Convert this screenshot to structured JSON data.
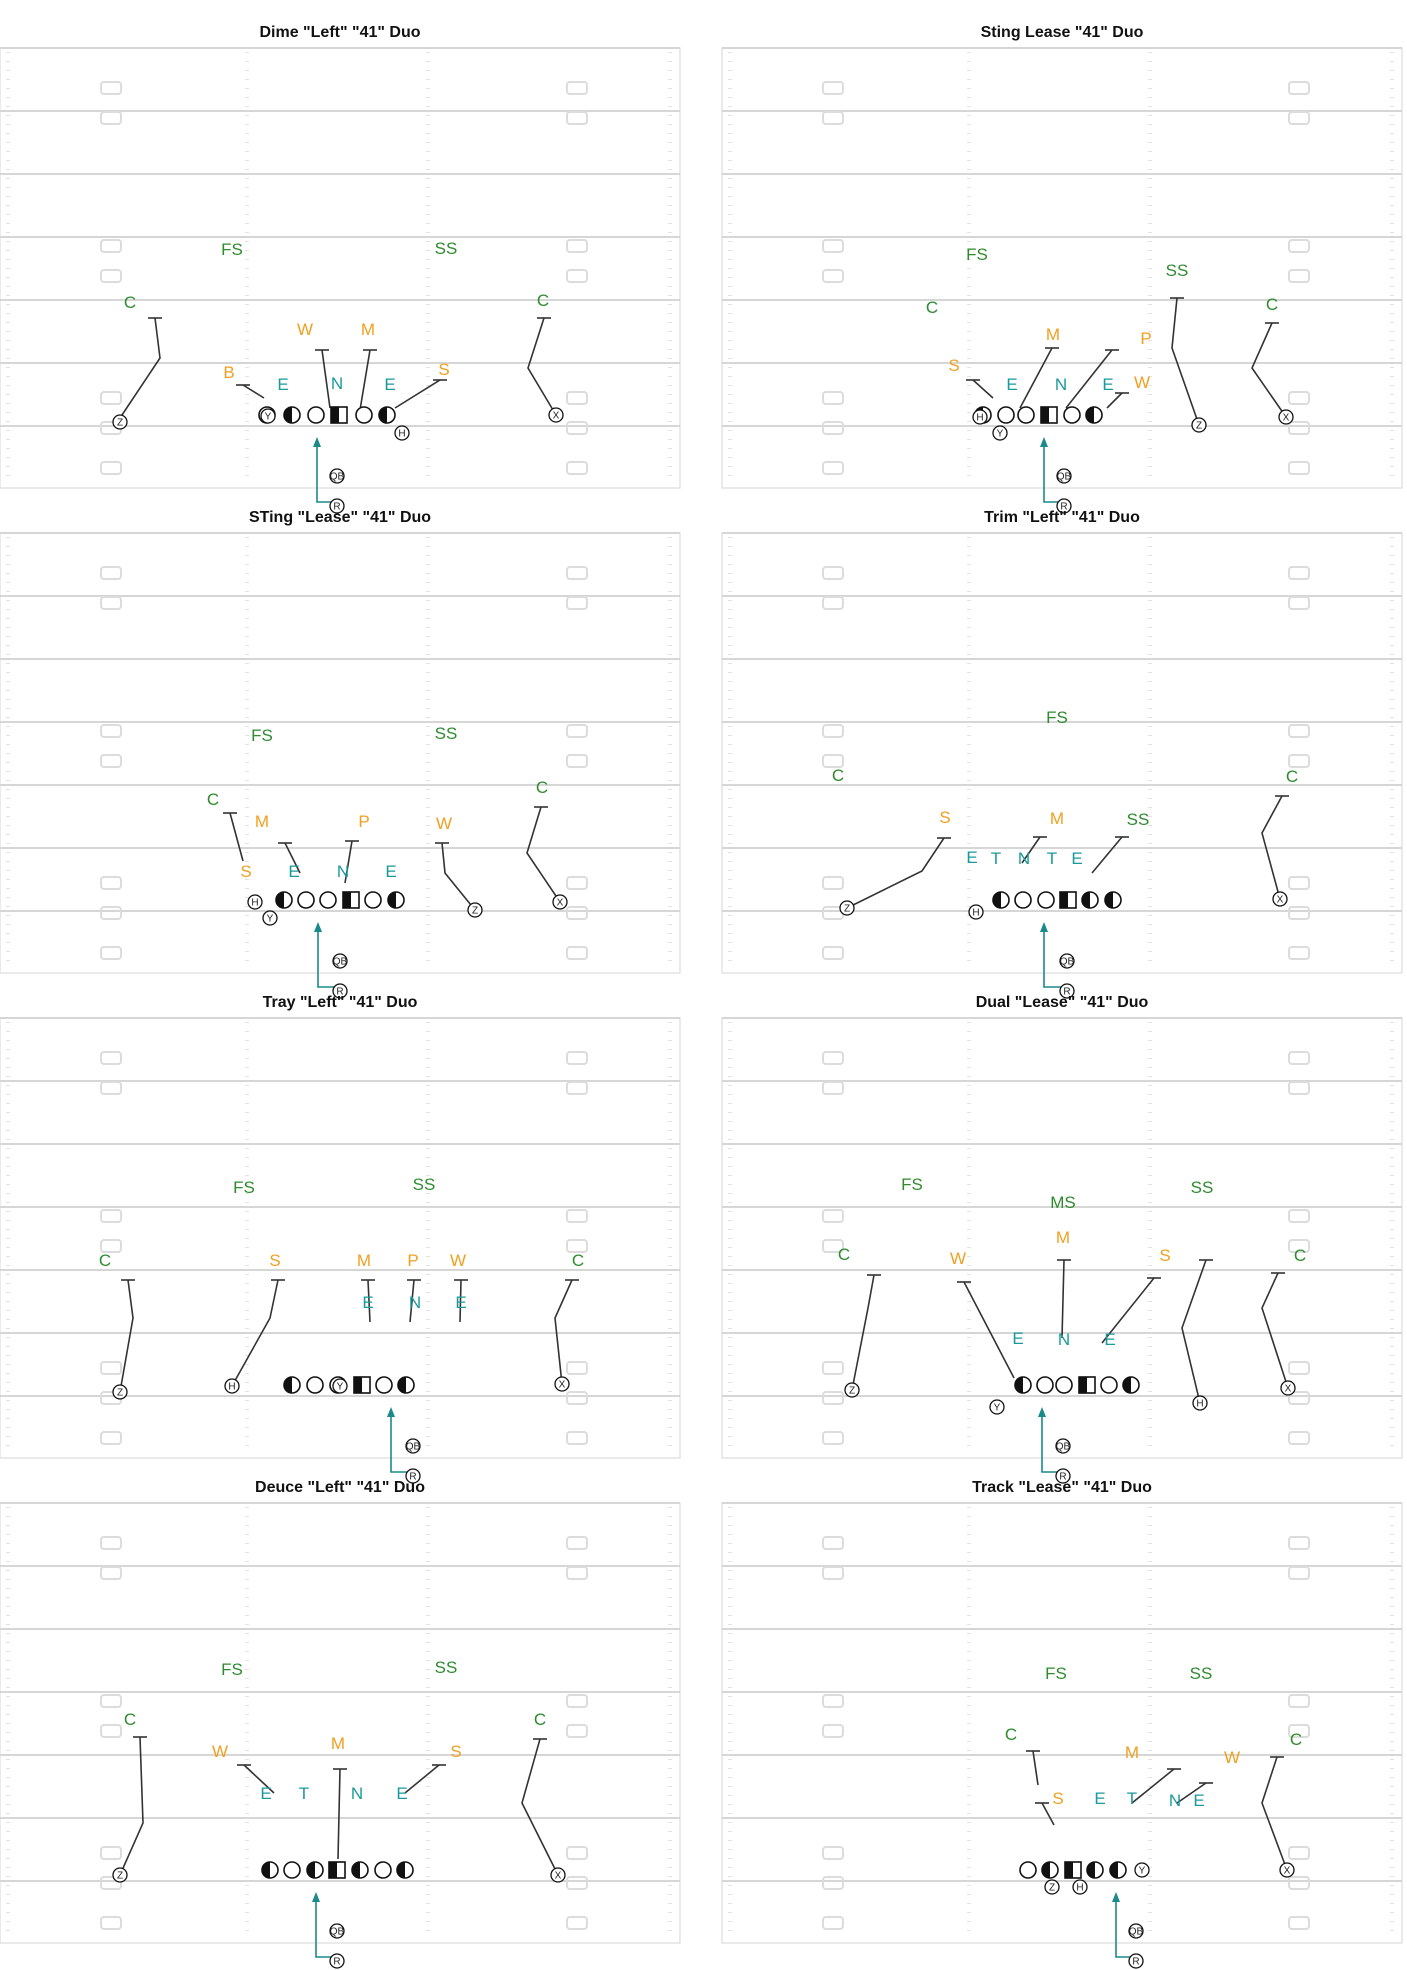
{
  "colors": {
    "secondary": "#2e8b2e",
    "linebacker": "#f0a020",
    "dline": "#1a9a9a",
    "route": "#333333",
    "run_arrow": "#1a8a8a",
    "field_line": "#d6d6d6"
  },
  "diagrams": [
    {
      "title": "Dime \"Left\" \"41\" Duo",
      "offense": {
        "line": [
          "O",
          "H",
          "O",
          "C",
          "O",
          "H"
        ],
        "receivers": [
          {
            "label": "Z"
          },
          {
            "label": "Y"
          },
          {
            "label": "H"
          },
          {
            "label": "X"
          }
        ],
        "backs": [
          {
            "label": "QB"
          },
          {
            "label": "R"
          }
        ]
      },
      "defense": [
        {
          "label": "FS",
          "group": "secondary"
        },
        {
          "label": "SS",
          "group": "secondary"
        },
        {
          "label": "C",
          "group": "secondary"
        },
        {
          "label": "C",
          "group": "secondary"
        },
        {
          "label": "W",
          "group": "linebacker"
        },
        {
          "label": "M",
          "group": "linebacker"
        },
        {
          "label": "B",
          "group": "linebacker"
        },
        {
          "label": "S",
          "group": "linebacker"
        },
        {
          "label": "E",
          "group": "dline"
        },
        {
          "label": "N",
          "group": "dline"
        },
        {
          "label": "E",
          "group": "dline"
        }
      ]
    },
    {
      "title": "Sting Lease \"41\" Duo",
      "offense": {
        "line": [
          "H",
          "O",
          "O",
          "C",
          "O",
          "H"
        ],
        "receivers": [
          {
            "label": "H"
          },
          {
            "label": "Y"
          },
          {
            "label": "Z"
          },
          {
            "label": "X"
          }
        ],
        "backs": [
          {
            "label": "QB"
          },
          {
            "label": "R"
          }
        ]
      },
      "defense": [
        {
          "label": "FS",
          "group": "secondary"
        },
        {
          "label": "SS",
          "group": "secondary"
        },
        {
          "label": "C",
          "group": "secondary"
        },
        {
          "label": "C",
          "group": "secondary"
        },
        {
          "label": "M",
          "group": "linebacker"
        },
        {
          "label": "P",
          "group": "linebacker"
        },
        {
          "label": "S",
          "group": "linebacker"
        },
        {
          "label": "W",
          "group": "linebacker"
        },
        {
          "label": "E",
          "group": "dline"
        },
        {
          "label": "N",
          "group": "dline"
        },
        {
          "label": "E",
          "group": "dline"
        }
      ]
    },
    {
      "title": "STing \"Lease\" \"41\" Duo",
      "offense": {
        "line": [
          "H",
          "O",
          "O",
          "C",
          "O",
          "H"
        ],
        "receivers": [
          {
            "label": "H"
          },
          {
            "label": "Y"
          },
          {
            "label": "Z"
          },
          {
            "label": "X"
          }
        ],
        "backs": [
          {
            "label": "QB"
          },
          {
            "label": "R"
          }
        ]
      },
      "defense": [
        {
          "label": "FS",
          "group": "secondary"
        },
        {
          "label": "SS",
          "group": "secondary"
        },
        {
          "label": "C",
          "group": "secondary"
        },
        {
          "label": "C",
          "group": "secondary"
        },
        {
          "label": "M",
          "group": "linebacker"
        },
        {
          "label": "P",
          "group": "linebacker"
        },
        {
          "label": "W",
          "group": "linebacker"
        },
        {
          "label": "S",
          "group": "linebacker"
        },
        {
          "label": "E",
          "group": "dline"
        },
        {
          "label": "N",
          "group": "dline"
        },
        {
          "label": "E",
          "group": "dline"
        }
      ]
    },
    {
      "title": "Trim \"Left\" \"41\" Duo",
      "offense": {
        "line": [
          "H",
          "O",
          "O",
          "C",
          "H",
          "H"
        ],
        "receivers": [
          {
            "label": "Z"
          },
          {
            "label": "H"
          },
          {
            "label": "X"
          }
        ],
        "backs": [
          {
            "label": "QB"
          },
          {
            "label": "R"
          }
        ]
      },
      "defense": [
        {
          "label": "FS",
          "group": "secondary"
        },
        {
          "label": "C",
          "group": "secondary"
        },
        {
          "label": "C",
          "group": "secondary"
        },
        {
          "label": "SS",
          "group": "secondary"
        },
        {
          "label": "S",
          "group": "linebacker"
        },
        {
          "label": "M",
          "group": "linebacker"
        },
        {
          "label": "E",
          "group": "dline"
        },
        {
          "label": "T",
          "group": "dline"
        },
        {
          "label": "N",
          "group": "dline"
        },
        {
          "label": "T",
          "group": "dline"
        },
        {
          "label": "E",
          "group": "dline"
        }
      ]
    },
    {
      "title": "Tray \"Left\" \"41\" Duo",
      "offense": {
        "line": [
          "H",
          "O",
          "O",
          "C",
          "O",
          "H"
        ],
        "receivers": [
          {
            "label": "Z"
          },
          {
            "label": "H"
          },
          {
            "label": "Y"
          },
          {
            "label": "X"
          }
        ],
        "backs": [
          {
            "label": "QB"
          },
          {
            "label": "R"
          }
        ]
      },
      "defense": [
        {
          "label": "FS",
          "group": "secondary"
        },
        {
          "label": "SS",
          "group": "secondary"
        },
        {
          "label": "C",
          "group": "secondary"
        },
        {
          "label": "C",
          "group": "secondary"
        },
        {
          "label": "S",
          "group": "linebacker"
        },
        {
          "label": "M",
          "group": "linebacker"
        },
        {
          "label": "P",
          "group": "linebacker"
        },
        {
          "label": "W",
          "group": "linebacker"
        },
        {
          "label": "E",
          "group": "dline"
        },
        {
          "label": "N",
          "group": "dline"
        },
        {
          "label": "E",
          "group": "dline"
        }
      ]
    },
    {
      "title": "Dual \"Lease\" \"41\" Duo",
      "offense": {
        "line": [
          "H",
          "O",
          "O",
          "C",
          "O",
          "H"
        ],
        "receivers": [
          {
            "label": "Z"
          },
          {
            "label": "Y"
          },
          {
            "label": "H"
          },
          {
            "label": "X"
          }
        ],
        "backs": [
          {
            "label": "QB"
          },
          {
            "label": "R"
          }
        ]
      },
      "defense": [
        {
          "label": "FS",
          "group": "secondary"
        },
        {
          "label": "MS",
          "group": "secondary"
        },
        {
          "label": "SS",
          "group": "secondary"
        },
        {
          "label": "C",
          "group": "secondary"
        },
        {
          "label": "C",
          "group": "secondary"
        },
        {
          "label": "W",
          "group": "linebacker"
        },
        {
          "label": "M",
          "group": "linebacker"
        },
        {
          "label": "S",
          "group": "linebacker"
        },
        {
          "label": "E",
          "group": "dline"
        },
        {
          "label": "N",
          "group": "dline"
        },
        {
          "label": "E",
          "group": "dline"
        }
      ]
    },
    {
      "title": "Deuce \"Left\" \"41\" Duo",
      "offense": {
        "line": [
          "H",
          "O",
          "H",
          "C",
          "H",
          "O",
          "H"
        ],
        "receivers": [
          {
            "label": "Z"
          },
          {
            "label": "X"
          }
        ],
        "backs": [
          {
            "label": "QB"
          },
          {
            "label": "R"
          }
        ]
      },
      "defense": [
        {
          "label": "FS",
          "group": "secondary"
        },
        {
          "label": "SS",
          "group": "secondary"
        },
        {
          "label": "C",
          "group": "secondary"
        },
        {
          "label": "C",
          "group": "secondary"
        },
        {
          "label": "W",
          "group": "linebacker"
        },
        {
          "label": "M",
          "group": "linebacker"
        },
        {
          "label": "S",
          "group": "linebacker"
        },
        {
          "label": "E",
          "group": "dline"
        },
        {
          "label": "T",
          "group": "dline"
        },
        {
          "label": "N",
          "group": "dline"
        },
        {
          "label": "E",
          "group": "dline"
        }
      ]
    },
    {
      "title": "Track \"Lease\" \"41\" Duo",
      "offense": {
        "line": [
          "O",
          "H",
          "C",
          "H",
          "H"
        ],
        "receivers": [
          {
            "label": "Z"
          },
          {
            "label": "H"
          },
          {
            "label": "Y"
          },
          {
            "label": "X"
          }
        ],
        "backs": [
          {
            "label": "QB"
          },
          {
            "label": "R"
          }
        ]
      },
      "defense": [
        {
          "label": "FS",
          "group": "secondary"
        },
        {
          "label": "SS",
          "group": "secondary"
        },
        {
          "label": "C",
          "group": "secondary"
        },
        {
          "label": "C",
          "group": "secondary"
        },
        {
          "label": "M",
          "group": "linebacker"
        },
        {
          "label": "W",
          "group": "linebacker"
        },
        {
          "label": "S",
          "group": "linebacker"
        },
        {
          "label": "E",
          "group": "dline"
        },
        {
          "label": "T",
          "group": "dline"
        },
        {
          "label": "N",
          "group": "dline"
        },
        {
          "label": "E",
          "group": "dline"
        }
      ]
    }
  ]
}
